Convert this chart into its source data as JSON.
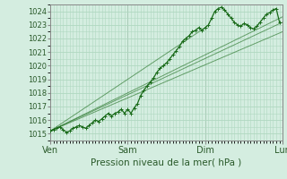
{
  "title": "",
  "xlabel": "Pression niveau de la mer( hPa )",
  "ylabel": "",
  "bg_color": "#d4ede0",
  "grid_color": "#b0d8c0",
  "line_color": "#1a6b1a",
  "marker_color": "#1a6b1a",
  "spine_color": "#888888",
  "xlim": [
    0,
    72
  ],
  "ylim": [
    1014.5,
    1024.5
  ],
  "yticks": [
    1015,
    1016,
    1017,
    1018,
    1019,
    1020,
    1021,
    1022,
    1023,
    1024
  ],
  "xtick_positions": [
    0,
    24,
    48,
    72
  ],
  "xtick_labels": [
    "Ven",
    "Sam",
    "Dim",
    "Lun"
  ],
  "observed_x": [
    0,
    1,
    2,
    3,
    4,
    5,
    6,
    7,
    8,
    9,
    10,
    11,
    12,
    13,
    14,
    15,
    16,
    17,
    18,
    19,
    20,
    21,
    22,
    23,
    24,
    25,
    26,
    27,
    28,
    29,
    30,
    31,
    32,
    33,
    34,
    35,
    36,
    37,
    38,
    39,
    40,
    41,
    42,
    43,
    44,
    45,
    46,
    47,
    48,
    49,
    50,
    51,
    52,
    53,
    54,
    55,
    56,
    57,
    58,
    59,
    60,
    61,
    62,
    63,
    64,
    65,
    66,
    67,
    68,
    69,
    70,
    71
  ],
  "observed_y": [
    1015.2,
    1015.3,
    1015.4,
    1015.5,
    1015.3,
    1015.1,
    1015.2,
    1015.4,
    1015.5,
    1015.6,
    1015.5,
    1015.4,
    1015.6,
    1015.8,
    1016.0,
    1015.9,
    1016.1,
    1016.3,
    1016.5,
    1016.3,
    1016.5,
    1016.6,
    1016.8,
    1016.5,
    1016.8,
    1016.5,
    1016.9,
    1017.2,
    1017.8,
    1018.2,
    1018.5,
    1018.8,
    1019.1,
    1019.5,
    1019.8,
    1020.0,
    1020.2,
    1020.5,
    1020.8,
    1021.1,
    1021.4,
    1021.8,
    1022.0,
    1022.2,
    1022.5,
    1022.6,
    1022.8,
    1022.6,
    1022.8,
    1023.0,
    1023.5,
    1024.0,
    1024.2,
    1024.3,
    1024.1,
    1023.8,
    1023.5,
    1023.2,
    1023.0,
    1022.9,
    1023.1,
    1023.0,
    1022.8,
    1022.7,
    1022.9,
    1023.2,
    1023.5,
    1023.8,
    1023.9,
    1024.1,
    1024.2,
    1023.2
  ],
  "forecast_lines": [
    {
      "x": [
        0,
        72
      ],
      "y": [
        1015.2,
        1023.2
      ]
    },
    {
      "x": [
        0,
        48
      ],
      "y": [
        1015.2,
        1022.8
      ]
    },
    {
      "x": [
        0,
        72
      ],
      "y": [
        1015.2,
        1022.5
      ]
    },
    {
      "x": [
        0,
        72
      ],
      "y": [
        1015.2,
        1023.6
      ]
    }
  ]
}
